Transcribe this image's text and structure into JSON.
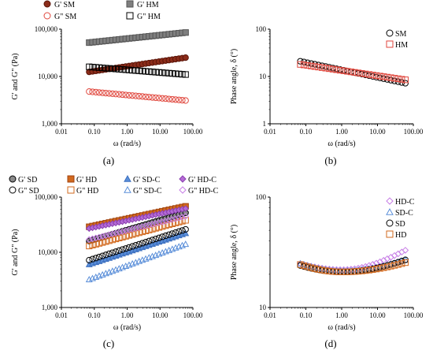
{
  "chart_data": [
    {
      "panel": "(a)",
      "type": "scatter",
      "xlabel": "ω (rad/s)",
      "ylabel": "G' and G\" (Pa)",
      "xscale": "log",
      "yscale": "log",
      "xlim": [
        0.01,
        100
      ],
      "ylim": [
        1000,
        100000
      ],
      "xticks": [
        "0.01",
        "0.10",
        "1.00",
        "10.00",
        "100.00"
      ],
      "yticks": [
        "1,000",
        "10,000",
        "100,000"
      ],
      "legend_position": "top",
      "series": [
        {
          "name": "G' SM",
          "marker": "circle",
          "fill": "#8b2c1a",
          "stroke": "#5a1408",
          "x_range": [
            0.07,
            60
          ],
          "y_start": 12500,
          "y_end": 25000,
          "n": 30
        },
        {
          "name": "G' HM",
          "marker": "square",
          "fill": "#7f7f7f",
          "stroke": "#555555",
          "x_range": [
            0.07,
            60
          ],
          "y_start": 52000,
          "y_end": 85000,
          "n": 30
        },
        {
          "name": "G\" SM",
          "marker": "circle",
          "fill": "none",
          "stroke": "#e0463c",
          "x_range": [
            0.07,
            60
          ],
          "y_start": 4800,
          "y_end": 3100,
          "n": 30
        },
        {
          "name": "G\" HM",
          "marker": "square",
          "fill": "none",
          "stroke": "#000000",
          "x_range": [
            0.07,
            60
          ],
          "y_start": 16000,
          "y_end": 11000,
          "n": 30
        }
      ]
    },
    {
      "panel": "(b)",
      "type": "scatter",
      "xlabel": "ω (rad/s)",
      "ylabel": "Phase angle, δ (°)",
      "xscale": "log",
      "yscale": "log",
      "xlim": [
        0.01,
        100
      ],
      "ylim": [
        1,
        100
      ],
      "xticks": [
        "0.01",
        "0.10",
        "1.00",
        "10.00",
        "100.00"
      ],
      "yticks": [
        "1",
        "10",
        "100"
      ],
      "legend_position": "top-right",
      "series": [
        {
          "name": "SM",
          "marker": "circle",
          "fill": "none",
          "stroke": "#000000",
          "x_range": [
            0.07,
            60
          ],
          "y_start": 21,
          "y_end": 7.2,
          "n": 30
        },
        {
          "name": "HM",
          "marker": "square",
          "fill": "none",
          "stroke": "#e0463c",
          "x_range": [
            0.07,
            60
          ],
          "y_start": 18,
          "y_end": 8.5,
          "n": 30
        }
      ]
    },
    {
      "panel": "(c)",
      "type": "scatter",
      "xlabel": "ω (rad/s)",
      "ylabel": "G' and G\" (Pa)",
      "xscale": "log",
      "yscale": "log",
      "xlim": [
        0.01,
        100
      ],
      "ylim": [
        1000,
        100000
      ],
      "xticks": [
        "0.01",
        "0.10",
        "1.00",
        "10.00",
        "100.00"
      ],
      "yticks": [
        "1,000",
        "10,000",
        "100,000"
      ],
      "legend_position": "top",
      "series": [
        {
          "name": "G' SD",
          "marker": "circle",
          "fill": "#8a8a8a",
          "stroke": "#000000",
          "x_range": [
            0.07,
            60
          ],
          "y_start": 16000,
          "y_end": 52000,
          "n": 30
        },
        {
          "name": "G' HD",
          "marker": "square",
          "fill": "#d2691e",
          "stroke": "#a0420e",
          "x_range": [
            0.07,
            60
          ],
          "y_start": 29000,
          "y_end": 68000,
          "n": 30
        },
        {
          "name": "G' SD-C",
          "marker": "triangle",
          "fill": "#5b8fd9",
          "stroke": "#3c6fbf",
          "x_range": [
            0.07,
            60
          ],
          "y_start": 6000,
          "y_end": 22000,
          "n": 30
        },
        {
          "name": "G' HD-C",
          "marker": "diamond",
          "fill": "#b56bd6",
          "stroke": "#8a3fb0",
          "x_range": [
            0.07,
            60
          ],
          "y_start": 27000,
          "y_end": 62000,
          "n": 30
        },
        {
          "name": "G\" SD",
          "marker": "circle",
          "fill": "none",
          "stroke": "#000000",
          "x_range": [
            0.07,
            60
          ],
          "y_start": 7200,
          "y_end": 26000,
          "n": 30
        },
        {
          "name": "G\" HD",
          "marker": "square",
          "fill": "none",
          "stroke": "#d2691e",
          "x_range": [
            0.07,
            60
          ],
          "y_start": 13000,
          "y_end": 38000,
          "n": 30
        },
        {
          "name": "G\" SD-C",
          "marker": "triangle",
          "fill": "none",
          "stroke": "#5b8fd9",
          "x_range": [
            0.07,
            60
          ],
          "y_start": 3200,
          "y_end": 14000,
          "n": 30
        },
        {
          "name": "G\" HD-C",
          "marker": "diamond",
          "fill": "none",
          "stroke": "#c77ee6",
          "x_range": [
            0.07,
            60
          ],
          "y_start": 17000,
          "y_end": 45000,
          "n": 30
        }
      ]
    },
    {
      "panel": "(d)",
      "type": "scatter",
      "xlabel": "ω (rad/s)",
      "ylabel": "Phase angle, δ (°)",
      "xscale": "log",
      "yscale": "log",
      "xlim": [
        0.01,
        100
      ],
      "ylim": [
        10,
        100
      ],
      "xticks": [
        "0.01",
        "0.10",
        "1.00",
        "10.00",
        "100.00"
      ],
      "yticks": [
        "10",
        "100"
      ],
      "legend_position": "top-right",
      "series": [
        {
          "name": "HD-C",
          "marker": "diamond",
          "fill": "none",
          "stroke": "#c77ee6",
          "x_range": [
            0.07,
            60
          ],
          "y_vals_hint": "u-shape",
          "y_start": 25,
          "y_min": 22,
          "y_end": 33,
          "n": 30
        },
        {
          "name": "SD-C",
          "marker": "triangle",
          "fill": "none",
          "stroke": "#5b8fd9",
          "x_range": [
            0.07,
            60
          ],
          "y_start": 25,
          "y_min": 21.5,
          "y_end": 27,
          "n": 30
        },
        {
          "name": "SD",
          "marker": "circle",
          "fill": "none",
          "stroke": "#000000",
          "x_range": [
            0.07,
            60
          ],
          "y_start": 24,
          "y_min": 21,
          "y_end": 27,
          "n": 30
        },
        {
          "name": "HD",
          "marker": "square",
          "fill": "none",
          "stroke": "#d2691e",
          "x_range": [
            0.07,
            60
          ],
          "y_start": 24.5,
          "y_min": 21,
          "y_end": 25.5,
          "n": 30
        }
      ]
    }
  ]
}
